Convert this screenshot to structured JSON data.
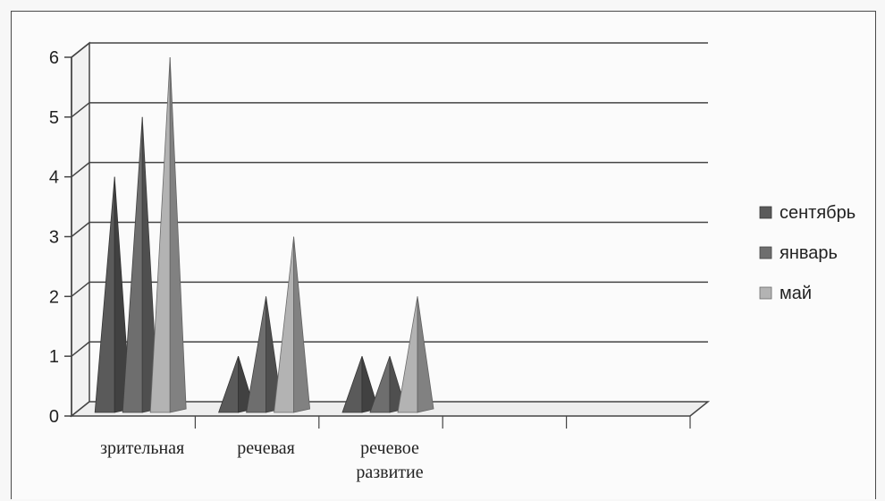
{
  "chart_data": {
    "type": "bar",
    "bar_shape": "pyramid-3d",
    "categories": [
      "зрительная",
      "речевая",
      "речевое развитие"
    ],
    "category_lines": [
      [
        "зрительная"
      ],
      [
        "речевая"
      ],
      [
        "речевое",
        "развитие"
      ]
    ],
    "series": [
      {
        "name": "сентябрь",
        "values": [
          4,
          1,
          1
        ],
        "color": "#5a5a5a"
      },
      {
        "name": "январь",
        "values": [
          5,
          2,
          1
        ],
        "color": "#6e6e6e"
      },
      {
        "name": "май",
        "values": [
          6,
          3,
          2
        ],
        "color": "#b3b3b3"
      }
    ],
    "ylim": [
      0,
      6
    ],
    "yticks": [
      "0",
      "1",
      "2",
      "3",
      "4",
      "5",
      "6"
    ],
    "grid": true,
    "legend": "right"
  }
}
